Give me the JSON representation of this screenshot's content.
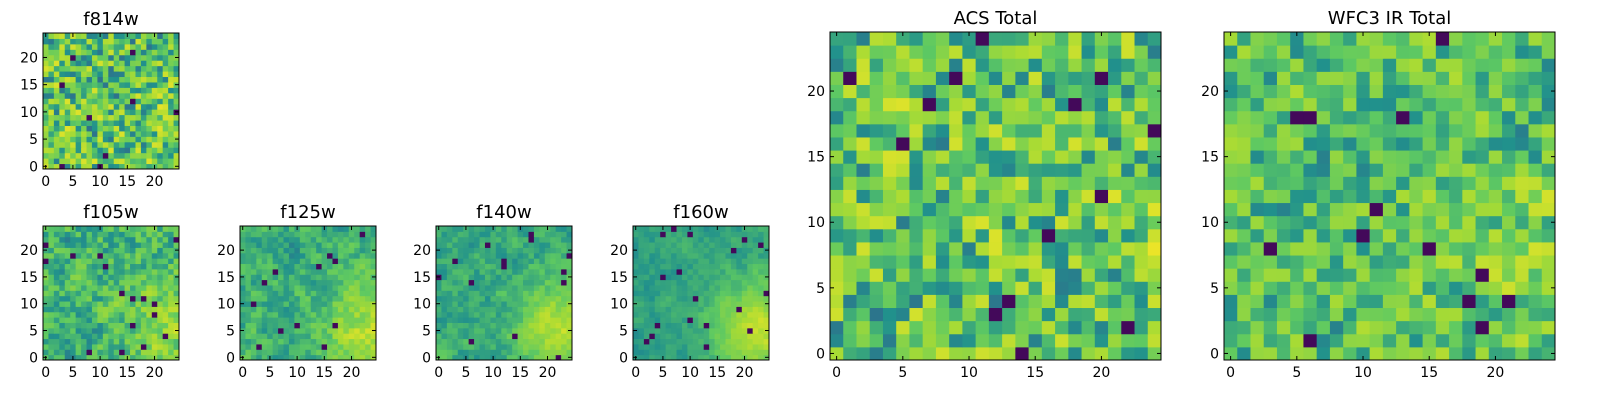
{
  "chart_data": [
    {
      "type": "heatmap",
      "title": "f814w",
      "seed": 11,
      "sharp": 0.85,
      "grad": 0.05,
      "xticks": [
        "0",
        "5",
        "10",
        "15",
        "20"
      ],
      "yticks": [
        "0",
        "5",
        "10",
        "15",
        "20"
      ],
      "xlim": [
        0,
        25
      ],
      "ylim": [
        0,
        25
      ]
    },
    {
      "type": "heatmap",
      "title": "f105w",
      "seed": 23,
      "sharp": 0.55,
      "grad": 0.3,
      "xticks": [
        "0",
        "5",
        "10",
        "15",
        "20"
      ],
      "yticks": [
        "0",
        "5",
        "10",
        "15",
        "20"
      ],
      "xlim": [
        0,
        25
      ],
      "ylim": [
        0,
        25
      ]
    },
    {
      "type": "heatmap",
      "title": "f125w",
      "seed": 37,
      "sharp": 0.45,
      "grad": 0.45,
      "xticks": [
        "0",
        "5",
        "10",
        "15",
        "20"
      ],
      "yticks": [
        "0",
        "5",
        "10",
        "15",
        "20"
      ],
      "xlim": [
        0,
        25
      ],
      "ylim": [
        0,
        25
      ]
    },
    {
      "type": "heatmap",
      "title": "f140w",
      "seed": 41,
      "sharp": 0.4,
      "grad": 0.55,
      "xticks": [
        "0",
        "5",
        "10",
        "15",
        "20"
      ],
      "yticks": [
        "0",
        "5",
        "10",
        "15",
        "20"
      ],
      "xlim": [
        0,
        25
      ],
      "ylim": [
        0,
        25
      ]
    },
    {
      "type": "heatmap",
      "title": "f160w",
      "seed": 53,
      "sharp": 0.35,
      "grad": 0.65,
      "xticks": [
        "0",
        "5",
        "10",
        "15",
        "20"
      ],
      "yticks": [
        "0",
        "5",
        "10",
        "15",
        "20"
      ],
      "xlim": [
        0,
        25
      ],
      "ylim": [
        0,
        25
      ]
    },
    {
      "type": "heatmap",
      "title": "ACS Total",
      "seed": 67,
      "sharp": 0.8,
      "grad": 0.05,
      "xticks": [
        "0",
        "5",
        "10",
        "15",
        "20"
      ],
      "yticks": [
        "0",
        "5",
        "10",
        "15",
        "20"
      ],
      "xlim": [
        0,
        25
      ],
      "ylim": [
        0,
        25
      ]
    },
    {
      "type": "heatmap",
      "title": "WFC3 IR Total",
      "seed": 79,
      "sharp": 0.7,
      "grad": 0.2,
      "xticks": [
        "0",
        "5",
        "10",
        "15",
        "20"
      ],
      "yticks": [
        "0",
        "5",
        "10",
        "15",
        "20"
      ],
      "xlim": [
        0,
        25
      ],
      "ylim": [
        0,
        25
      ]
    }
  ],
  "colormap": [
    "#440154",
    "#3b528b",
    "#21918c",
    "#5ec962",
    "#a8db34",
    "#fde725"
  ]
}
